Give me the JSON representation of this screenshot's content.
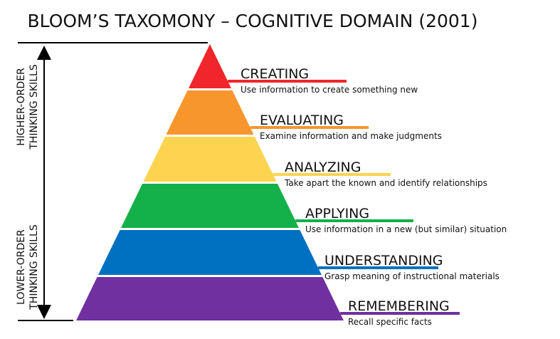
{
  "title": "BLOOM’S TAXOMONY – COGNITIVE DOMAIN (2001)",
  "side_labels": [
    {
      "lines": [
        "HIGHER-ORDER",
        "THINKING SKILLS"
      ]
    },
    {
      "lines": [
        "LOWER-ORDER",
        "THINKING SKILLS"
      ]
    }
  ],
  "levels": [
    {
      "name": "CREATING",
      "description": "Use information to create something new"
    },
    {
      "name": "EVALUATING",
      "description": "Examine information and make judgments"
    },
    {
      "name": "ANALYZING",
      "description": "Take apart the known and identify relationships"
    },
    {
      "name": "APPLYING",
      "description": "Use information in a new (but similar) situation"
    },
    {
      "name": "UNDERSTANDING",
      "description": "Grasp meaning of instructional materials"
    },
    {
      "name": "REMEMBERING",
      "description": "Recall specific facts"
    }
  ]
}
